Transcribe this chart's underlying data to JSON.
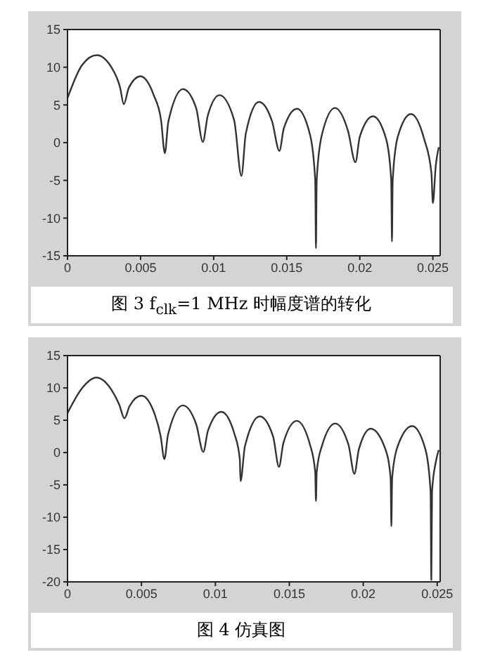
{
  "chart_data": [
    {
      "type": "line",
      "title": "图 3  f$_{clk}$=1 MHz 时幅度谱的转化",
      "xlim": [
        0,
        0.0255
      ],
      "xticks": [
        0,
        0.005,
        0.01,
        0.015,
        0.02,
        0.025
      ],
      "ylim": [
        -15,
        15
      ],
      "yticks": [
        -15,
        -10,
        -5,
        0,
        5,
        10,
        15
      ],
      "marker": "none",
      "series": [
        {
          "color": "#333333",
          "x": [
            0,
            0.001,
            0.002,
            0.003,
            0.0036,
            0.00385,
            0.0042,
            0.005,
            0.0059,
            0.0064,
            0.00666,
            0.0069,
            0.0079,
            0.0088,
            0.00926,
            0.0096,
            0.0104,
            0.0114,
            0.0119,
            0.0122,
            0.0131,
            0.014,
            0.0145,
            0.0148,
            0.0157,
            0.0166,
            0.01695,
            0.017,
            0.01705,
            0.0174,
            0.0183,
            0.0192,
            0.0197,
            0.02,
            0.0209,
            0.0218,
            0.02215,
            0.0222,
            0.02225,
            0.0226,
            0.0235,
            0.0244,
            0.0249,
            0.025,
            0.0252,
            0.0254
          ],
          "values": [
            5.9,
            10.3,
            11.6,
            10.0,
            7.3,
            5.1,
            7.3,
            8.8,
            6.3,
            3.0,
            -1.4,
            2.8,
            7.1,
            4.6,
            0.1,
            3.6,
            6.3,
            3.0,
            -4.4,
            1.2,
            5.4,
            2.8,
            -1.1,
            1.9,
            4.5,
            1.0,
            -5,
            -14,
            -5,
            1.0,
            4.6,
            1.5,
            -2.6,
            0.8,
            3.5,
            0.5,
            -5,
            -13.1,
            -5,
            0.8,
            3.8,
            0.5,
            -4,
            -8,
            -3,
            -0.6
          ]
        }
      ]
    },
    {
      "type": "line",
      "title": "图 4  仿真图",
      "xlim": [
        0,
        0.0252
      ],
      "xticks": [
        0,
        0.005,
        0.01,
        0.015,
        0.02,
        0.025
      ],
      "ylim": [
        -20,
        15
      ],
      "yticks": [
        -20,
        -15,
        -10,
        -5,
        0,
        5,
        10,
        15
      ],
      "marker": "none",
      "series": [
        {
          "color": "#333333",
          "x": [
            0,
            0.001,
            0.00194,
            0.003,
            0.0035,
            0.00385,
            0.0042,
            0.005,
            0.0059,
            0.0063,
            0.00655,
            0.0068,
            0.0078,
            0.0087,
            0.00918,
            0.0095,
            0.0104,
            0.0113,
            0.01165,
            0.0117,
            0.012,
            0.013,
            0.0139,
            0.0143,
            0.0146,
            0.0155,
            0.0164,
            0.01675,
            0.0168,
            0.01685,
            0.0172,
            0.0181,
            0.019,
            0.0194,
            0.0197,
            0.0205,
            0.0215,
            0.02185,
            0.0219,
            0.02195,
            0.0223,
            0.0233,
            0.0242,
            0.02455,
            0.0246,
            0.02465,
            0.0249,
            0.0251
          ],
          "values": [
            6.1,
            10.0,
            11.6,
            9.6,
            7.4,
            5.3,
            7.2,
            8.8,
            5.9,
            2.5,
            -1,
            2.8,
            7.3,
            4.4,
            0.1,
            3.4,
            6.3,
            2.8,
            -1,
            -4.4,
            1.0,
            5.6,
            2.5,
            -2.2,
            1.5,
            4.9,
            1.2,
            -3,
            -7.5,
            -3,
            1.0,
            4.5,
            1.2,
            -3.3,
            0.5,
            3.7,
            0.5,
            -4,
            -11.4,
            -4,
            0.8,
            4.1,
            0.5,
            -6,
            -19.7,
            -6,
            -1.5,
            0.4
          ]
        }
      ]
    }
  ]
}
